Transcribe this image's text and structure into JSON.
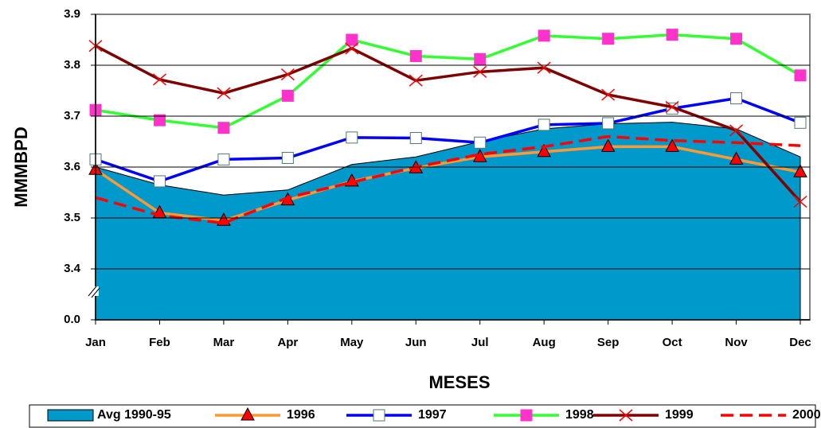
{
  "chart_data": {
    "type": "line",
    "x_label": "MESES",
    "y_label": "MMMBPD",
    "categories": [
      "Jan",
      "Feb",
      "Mar",
      "Apr",
      "May",
      "Jun",
      "Jul",
      "Aug",
      "Sep",
      "Oct",
      "Nov",
      "Dec"
    ],
    "ylim": [
      0,
      3.9
    ],
    "axis_break": [
      0,
      3.4
    ],
    "yticks": [
      {
        "value": 0,
        "label": "0.0"
      },
      3.4,
      3.5,
      3.6,
      3.7,
      3.8,
      3.9
    ],
    "grid": true,
    "series": [
      {
        "name": "Avg 1990-95",
        "type": "area",
        "color": "#0099cc",
        "values": [
          3.6,
          3.565,
          3.545,
          3.555,
          3.605,
          3.62,
          3.65,
          3.675,
          3.685,
          3.688,
          3.675,
          3.62
        ]
      },
      {
        "name": "1996",
        "type": "line",
        "color": "#ff9933",
        "marker": "triangle",
        "marker_color": "#ff0000",
        "values": [
          3.595,
          3.51,
          3.495,
          3.535,
          3.572,
          3.598,
          3.62,
          3.63,
          3.64,
          3.64,
          3.615,
          3.59
        ]
      },
      {
        "name": "1997",
        "type": "line",
        "color": "#0000ff",
        "marker": "square",
        "marker_color": "#ffffff",
        "values": [
          3.615,
          3.572,
          3.615,
          3.618,
          3.658,
          3.657,
          3.648,
          3.683,
          3.686,
          3.715,
          3.735,
          3.687
        ]
      },
      {
        "name": "1998",
        "type": "line",
        "color": "#33ff33",
        "marker": "square",
        "marker_color": "#ff33cc",
        "values": [
          3.712,
          3.692,
          3.677,
          3.74,
          3.85,
          3.818,
          3.812,
          3.858,
          3.852,
          3.86,
          3.852,
          3.78
        ]
      },
      {
        "name": "1999",
        "type": "line",
        "color": "#800000",
        "marker": "x",
        "marker_color": "#ff0000",
        "values": [
          3.838,
          3.772,
          3.745,
          3.782,
          3.833,
          3.77,
          3.787,
          3.795,
          3.742,
          3.718,
          3.672,
          3.532
        ]
      },
      {
        "name": "2000",
        "type": "line",
        "color": "#ff0000",
        "dashed": true,
        "values": [
          3.54,
          3.505,
          3.49,
          3.54,
          3.57,
          3.6,
          3.625,
          3.64,
          3.66,
          3.652,
          3.648,
          3.642
        ]
      }
    ]
  }
}
